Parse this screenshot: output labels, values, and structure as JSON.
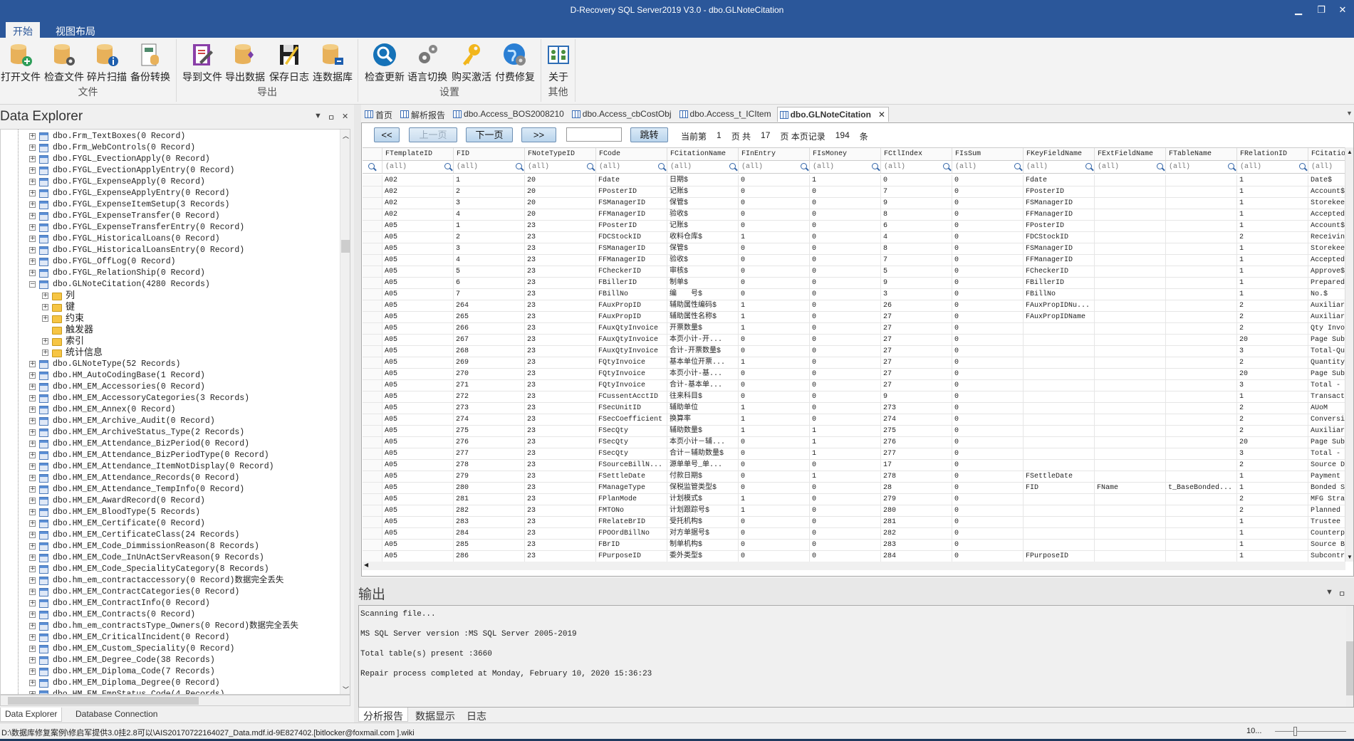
{
  "window": {
    "title": "D-Recovery SQL Server2019 V3.0 - dbo.GLNoteCitation",
    "minimize": "▁",
    "restore": "❐",
    "close": "✕"
  },
  "ribbon": {
    "tabs": [
      "开始",
      "视图布局"
    ],
    "groups": [
      {
        "label": "文件",
        "buttons": [
          {
            "label": "打开文件",
            "icon": "db-add-icon"
          },
          {
            "label": "检查文件",
            "icon": "db-gear-icon"
          },
          {
            "label": "碎片扫描",
            "icon": "db-info-icon"
          },
          {
            "label": "备份转换",
            "icon": "backup-convert-icon"
          }
        ]
      },
      {
        "label": "导出",
        "buttons": [
          {
            "label": "导到文件",
            "icon": "export-file-icon"
          },
          {
            "label": "导出数据",
            "icon": "db-export-icon"
          },
          {
            "label": "保存日志",
            "icon": "save-log-icon"
          },
          {
            "label": "连数据库",
            "icon": "db-connect-icon"
          }
        ]
      },
      {
        "label": "设置",
        "buttons": [
          {
            "label": "检查更新",
            "icon": "search-update-icon"
          },
          {
            "label": "语言切换",
            "icon": "gears-icon"
          },
          {
            "label": "购买激活",
            "icon": "key-icon"
          },
          {
            "label": "付费修复",
            "icon": "globe-gear-icon"
          }
        ]
      },
      {
        "label": "其他",
        "buttons": [
          {
            "label": "关于",
            "icon": "about-book-icon"
          }
        ]
      }
    ]
  },
  "explorer": {
    "title": "Data Explorer",
    "tree": [
      {
        "label": "dbo.Frm_TextBoxes(0 Record)",
        "level": 0
      },
      {
        "label": "dbo.Frm_WebControls(0 Record)",
        "level": 0
      },
      {
        "label": "dbo.FYGL_EvectionApply(0 Record)",
        "level": 0
      },
      {
        "label": "dbo.FYGL_EvectionApplyEntry(0 Record)",
        "level": 0
      },
      {
        "label": "dbo.FYGL_ExpenseApply(0 Record)",
        "level": 0
      },
      {
        "label": "dbo.FYGL_ExpenseApplyEntry(0 Record)",
        "level": 0
      },
      {
        "label": "dbo.FYGL_ExpenseItemSetup(3 Records)",
        "level": 0
      },
      {
        "label": "dbo.FYGL_ExpenseTransfer(0 Record)",
        "level": 0
      },
      {
        "label": "dbo.FYGL_ExpenseTransferEntry(0 Record)",
        "level": 0
      },
      {
        "label": "dbo.FYGL_HistoricalLoans(0 Record)",
        "level": 0
      },
      {
        "label": "dbo.FYGL_HistoricalLoansEntry(0 Record)",
        "level": 0
      },
      {
        "label": "dbo.FYGL_OffLog(0 Record)",
        "level": 0
      },
      {
        "label": "dbo.FYGL_RelationShip(0 Record)",
        "level": 0
      },
      {
        "label": "dbo.GLNoteCitation(4280 Records)",
        "level": 0,
        "expanded": true
      },
      {
        "label": "列",
        "level": 1
      },
      {
        "label": "键",
        "level": 1
      },
      {
        "label": "约束",
        "level": 1
      },
      {
        "label": "触发器",
        "level": 1,
        "leaf": true
      },
      {
        "label": "索引",
        "level": 1
      },
      {
        "label": "统计信息",
        "level": 1
      },
      {
        "label": "dbo.GLNoteType(52 Records)",
        "level": 0
      },
      {
        "label": "dbo.HM_AutoCodingBase(1 Record)",
        "level": 0
      },
      {
        "label": "dbo.HM_EM_Accessories(0 Record)",
        "level": 0
      },
      {
        "label": "dbo.HM_EM_AccessoryCategories(3 Records)",
        "level": 0
      },
      {
        "label": "dbo.HM_EM_Annex(0 Record)",
        "level": 0
      },
      {
        "label": "dbo.HM_EM_Archive_Audit(0 Record)",
        "level": 0
      },
      {
        "label": "dbo.HM_EM_ArchiveStatus_Type(2 Records)",
        "level": 0
      },
      {
        "label": "dbo.HM_EM_Attendance_BizPeriod(0 Record)",
        "level": 0
      },
      {
        "label": "dbo.HM_EM_Attendance_BizPeriodType(0 Record)",
        "level": 0
      },
      {
        "label": "dbo.HM_EM_Attendance_ItemNotDisplay(0 Record)",
        "level": 0
      },
      {
        "label": "dbo.HM_EM_Attendance_Records(0 Record)",
        "level": 0
      },
      {
        "label": "dbo.HM_EM_Attendance_TempInfo(0 Record)",
        "level": 0
      },
      {
        "label": "dbo.HM_EM_AwardRecord(0 Record)",
        "level": 0
      },
      {
        "label": "dbo.HM_EM_BloodType(5 Records)",
        "level": 0
      },
      {
        "label": "dbo.HM_EM_Certificate(0 Record)",
        "level": 0
      },
      {
        "label": "dbo.HM_EM_CertificateClass(24 Records)",
        "level": 0
      },
      {
        "label": "dbo.HM_EM_Code_DimmissionReason(8 Records)",
        "level": 0
      },
      {
        "label": "dbo.HM_EM_Code_InUnActServReason(9 Records)",
        "level": 0
      },
      {
        "label": "dbo.HM_EM_Code_SpecialityCategory(8 Records)",
        "level": 0
      },
      {
        "label": "dbo.hm_em_contractaccessory(0 Record)数据完全丢失",
        "level": 0
      },
      {
        "label": "dbo.HM_EM_ContractCategories(0 Record)",
        "level": 0
      },
      {
        "label": "dbo.HM_EM_ContractInfo(0 Record)",
        "level": 0
      },
      {
        "label": "dbo.HM_EM_Contracts(0 Record)",
        "level": 0
      },
      {
        "label": "dbo.hm_em_contractsType_Owners(0 Record)数据完全丢失",
        "level": 0
      },
      {
        "label": "dbo.HM_EM_CriticalIncident(0 Record)",
        "level": 0
      },
      {
        "label": "dbo.HM_EM_Custom_Speciality(0 Record)",
        "level": 0
      },
      {
        "label": "dbo.HM_EM_Degree_Code(38 Records)",
        "level": 0
      },
      {
        "label": "dbo.HM_EM_Diploma_Code(7 Records)",
        "level": 0
      },
      {
        "label": "dbo.HM_EM_Diploma_Degree(0 Record)",
        "level": 0
      },
      {
        "label": "dbo.HM_EM_EmpStatus_Code(4 Records)",
        "level": 0
      }
    ],
    "bottom_tabs": [
      "Data Explorer",
      "Database Connection"
    ]
  },
  "doc_tabs": [
    {
      "label": "首页"
    },
    {
      "label": "解析报告"
    },
    {
      "label": "dbo.Access_BOS2008210"
    },
    {
      "label": "dbo.Access_cbCostObj"
    },
    {
      "label": "dbo.Access_t_ICItem"
    },
    {
      "label": "dbo.GLNoteCitation",
      "active": true
    }
  ],
  "pager": {
    "first": "<<",
    "prev": "上一页",
    "next": "下一页",
    "last": ">>",
    "jump_value": "",
    "jump": "跳转",
    "current_label": "当前第",
    "current_page": "1",
    "total_label": "页 共",
    "total_pages": "17",
    "records_label": "页 本页记录",
    "records": "194",
    "records_unit": "条"
  },
  "grid": {
    "filter_placeholder": "(all)",
    "columns": [
      "FTemplateID",
      "FID",
      "FNoteTypeID",
      "FCode",
      "FCitationName",
      "FInEntry",
      "FIsMoney",
      "FCtlIndex",
      "FIsSum",
      "FKeyFieldName",
      "FExtFieldName",
      "FTableName",
      "FRelationID",
      "FCitation"
    ],
    "rows": [
      [
        "A02",
        "1",
        "20",
        "Fdate",
        "日期$",
        "0",
        "1",
        "0",
        "0",
        "Fdate",
        "",
        "",
        "1",
        "Date$"
      ],
      [
        "A02",
        "2",
        "20",
        "FPosterID",
        "记账$",
        "0",
        "0",
        "7",
        "0",
        "FPosterID",
        "",
        "",
        "1",
        "Account$"
      ],
      [
        "A02",
        "3",
        "20",
        "FSManagerID",
        "保管$",
        "0",
        "0",
        "9",
        "0",
        "FSManagerID",
        "",
        "",
        "1",
        "Storekee"
      ],
      [
        "A02",
        "4",
        "20",
        "FFManagerID",
        "验收$",
        "0",
        "0",
        "8",
        "0",
        "FFManagerID",
        "",
        "",
        "1",
        "Accepted"
      ],
      [
        "A05",
        "1",
        "23",
        "FPosterID",
        "记账$",
        "0",
        "0",
        "6",
        "0",
        "FPosterID",
        "",
        "",
        "1",
        "Account$"
      ],
      [
        "A05",
        "2",
        "23",
        "FDCStockID",
        "收料仓库$",
        "1",
        "0",
        "4",
        "0",
        "FDCStockID",
        "",
        "",
        "2",
        "Receivin"
      ],
      [
        "A05",
        "3",
        "23",
        "FSManagerID",
        "保管$",
        "0",
        "0",
        "8",
        "0",
        "FSManagerID",
        "",
        "",
        "1",
        "Storekee"
      ],
      [
        "A05",
        "4",
        "23",
        "FFManagerID",
        "验收$",
        "0",
        "0",
        "7",
        "0",
        "FFManagerID",
        "",
        "",
        "1",
        "Accepted"
      ],
      [
        "A05",
        "5",
        "23",
        "FCheckerID",
        "审核$",
        "0",
        "0",
        "5",
        "0",
        "FCheckerID",
        "",
        "",
        "1",
        "Approve$"
      ],
      [
        "A05",
        "6",
        "23",
        "FBillerID",
        "制单$",
        "0",
        "0",
        "9",
        "0",
        "FBillerID",
        "",
        "",
        "1",
        "Prepared"
      ],
      [
        "A05",
        "7",
        "23",
        "FBillNo",
        "编　　号$",
        "0",
        "0",
        "3",
        "0",
        "FBillNo",
        "",
        "",
        "1",
        "No.$"
      ],
      [
        "A05",
        "264",
        "23",
        "FAuxPropID",
        "辅助属性编码$",
        "1",
        "0",
        "26",
        "0",
        "FAuxPropIDNu...",
        "",
        "",
        "2",
        "Auxiliar"
      ],
      [
        "A05",
        "265",
        "23",
        "FAuxPropID",
        "辅助属性名称$",
        "1",
        "0",
        "27",
        "0",
        "FAuxPropIDName",
        "",
        "",
        "2",
        "Auxiliar"
      ],
      [
        "A05",
        "266",
        "23",
        "FAuxQtyInvoice",
        "开票数量$",
        "1",
        "0",
        "27",
        "0",
        "",
        "",
        "",
        "2",
        "Qty Invo"
      ],
      [
        "A05",
        "267",
        "23",
        "FAuxQtyInvoice",
        "本页小计-开...",
        "0",
        "0",
        "27",
        "0",
        "",
        "",
        "",
        "20",
        "Page Sub"
      ],
      [
        "A05",
        "268",
        "23",
        "FAuxQtyInvoice",
        "合计-开票数量$",
        "0",
        "0",
        "27",
        "0",
        "",
        "",
        "",
        "3",
        "Total-Qu"
      ],
      [
        "A05",
        "269",
        "23",
        "FQtyInvoice",
        "基本单位开票...",
        "1",
        "0",
        "27",
        "0",
        "",
        "",
        "",
        "2",
        "Quantity"
      ],
      [
        "A05",
        "270",
        "23",
        "FQtyInvoice",
        "本页小计-基...",
        "0",
        "0",
        "27",
        "0",
        "",
        "",
        "",
        "20",
        "Page Sub"
      ],
      [
        "A05",
        "271",
        "23",
        "FQtyInvoice",
        "合计-基本单...",
        "0",
        "0",
        "27",
        "0",
        "",
        "",
        "",
        "3",
        "Total -"
      ],
      [
        "A05",
        "272",
        "23",
        "FCussentAcctID",
        "往来科目$",
        "0",
        "0",
        "9",
        "0",
        "",
        "",
        "",
        "1",
        "Transact"
      ],
      [
        "A05",
        "273",
        "23",
        "FSecUnitID",
        "辅助单位",
        "1",
        "0",
        "273",
        "0",
        "",
        "",
        "",
        "2",
        "AUoM"
      ],
      [
        "A05",
        "274",
        "23",
        "FSecCoefficient",
        "换算率",
        "1",
        "0",
        "274",
        "0",
        "",
        "",
        "",
        "2",
        "Conversi"
      ],
      [
        "A05",
        "275",
        "23",
        "FSecQty",
        "辅助数量$",
        "1",
        "1",
        "275",
        "0",
        "",
        "",
        "",
        "2",
        "Auxiliar"
      ],
      [
        "A05",
        "276",
        "23",
        "FSecQty",
        "本页小计－辅...",
        "0",
        "1",
        "276",
        "0",
        "",
        "",
        "",
        "20",
        "Page Sub"
      ],
      [
        "A05",
        "277",
        "23",
        "FSecQty",
        "合计－辅助数量$",
        "0",
        "1",
        "277",
        "0",
        "",
        "",
        "",
        "3",
        "Total -"
      ],
      [
        "A05",
        "278",
        "23",
        "FSourceBillN...",
        "源单单号_单...",
        "0",
        "0",
        "17",
        "0",
        "",
        "",
        "",
        "2",
        "Source D"
      ],
      [
        "A05",
        "279",
        "23",
        "FSettleDate",
        "付款日期$",
        "0",
        "1",
        "278",
        "0",
        "FSettleDate",
        "",
        "",
        "1",
        "Payment"
      ],
      [
        "A05",
        "280",
        "23",
        "FManageType",
        "保税监管类型$",
        "0",
        "0",
        "28",
        "0",
        "FID",
        "FName",
        "t_BaseBonded...",
        "1",
        "Bonded S"
      ],
      [
        "A05",
        "281",
        "23",
        "FPlanMode",
        "计划模式$",
        "1",
        "0",
        "279",
        "0",
        "",
        "",
        "",
        "2",
        "MFG Stra"
      ],
      [
        "A05",
        "282",
        "23",
        "FMTONo",
        "计划跟踪号$",
        "1",
        "0",
        "280",
        "0",
        "",
        "",
        "",
        "2",
        "Planned"
      ],
      [
        "A05",
        "283",
        "23",
        "FRelateBrID",
        "受托机构$",
        "0",
        "0",
        "281",
        "0",
        "",
        "",
        "",
        "1",
        "Trustee"
      ],
      [
        "A05",
        "284",
        "23",
        "FPOOrdBillNo",
        "对方单据号$",
        "0",
        "0",
        "282",
        "0",
        "",
        "",
        "",
        "1",
        "Counterp"
      ],
      [
        "A05",
        "285",
        "23",
        "FBrID",
        "制单机构$",
        "0",
        "0",
        "283",
        "0",
        "",
        "",
        "",
        "1",
        "Source B"
      ],
      [
        "A05",
        "286",
        "23",
        "FPurposeID",
        "委外类型$",
        "0",
        "0",
        "284",
        "0",
        "FPurposeID",
        "",
        "",
        "1",
        "Subcontr"
      ]
    ]
  },
  "output": {
    "title": "输出",
    "lines": [
      "Scanning file...",
      "MS SQL Server version  :MS SQL Server 2005-2019",
      "Total table(s) present  :3660",
      "Repair process completed at Monday, February 10, 2020 15:36:23"
    ],
    "tabs": [
      "分析报告",
      "数据显示",
      "日志"
    ]
  },
  "status": {
    "path": "D:\\数据库修复案例\\修启军提供3.0挂2.8可以\\AIS20170722164027_Data.mdf.id-9E827402.[bitlocker@foxmail.com ].wiki",
    "zoom": "10..."
  },
  "colors": {
    "accent": "#2b579a",
    "db_icon": "#e8b15a"
  }
}
